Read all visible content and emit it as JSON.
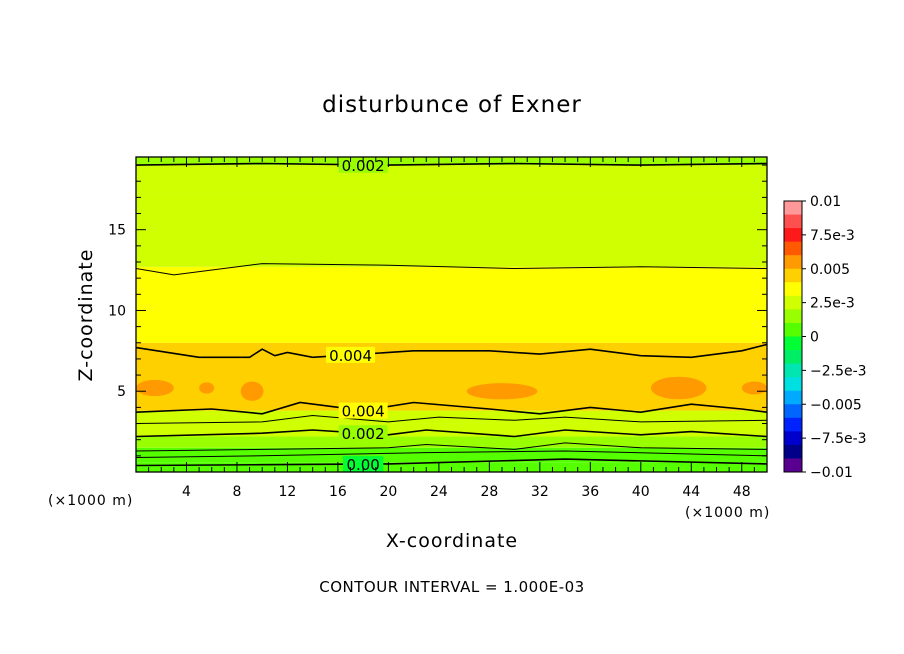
{
  "chart_data": {
    "type": "heatmap",
    "title": "disturbunce of Exner",
    "xlabel": "X-coordinate",
    "ylabel": "Z-coordinate",
    "x_unit_left": "(×1000 m)",
    "x_unit_right": "(×1000 m)",
    "xlim": [
      0,
      50
    ],
    "ylim": [
      0,
      19.5
    ],
    "x_ticks": [
      4,
      8,
      12,
      16,
      20,
      24,
      28,
      32,
      36,
      40,
      44,
      48
    ],
    "y_ticks": [
      5,
      10,
      15
    ],
    "footer": "CONTOUR INTERVAL = 1.000E-03",
    "colorbar": {
      "range": [
        -0.01,
        0.01
      ],
      "tick_values": [
        0.01,
        0.0075,
        0.005,
        0.0025,
        0,
        -0.0025,
        -0.005,
        -0.0075,
        -0.01
      ],
      "tick_labels": [
        "0.01",
        "7.5e-3",
        "0.005",
        "2.5e-3",
        "0",
        "−2.5e-3",
        "−0.005",
        "−7.5e-3",
        "−0.01"
      ],
      "colors": [
        "#ff9999",
        "#ff5050",
        "#ff1a1a",
        "#ff5a00",
        "#ff9a00",
        "#ffd000",
        "#ffff00",
        "#cfff00",
        "#99ff00",
        "#55ff00",
        "#00ff33",
        "#00ee66",
        "#00e6b0",
        "#00e0e0",
        "#00aaff",
        "#0066ff",
        "#0022ff",
        "#0000cc",
        "#000088",
        "#5a0090"
      ]
    },
    "bands": [
      {
        "z0": 0.0,
        "z1": 0.6,
        "value": 0.0003
      },
      {
        "z0": 0.6,
        "z1": 1.5,
        "value": 0.0008
      },
      {
        "z0": 1.5,
        "z1": 2.2,
        "value": 0.0013
      },
      {
        "z0": 2.2,
        "z1": 3.0,
        "value": 0.0021
      },
      {
        "z0": 3.0,
        "z1": 3.8,
        "value": 0.0026
      },
      {
        "z0": 3.8,
        "z1": 8.0,
        "value": 0.0046
      },
      {
        "z0": 8.0,
        "z1": 12.7,
        "value": 0.0036
      },
      {
        "z0": 12.7,
        "z1": 17.3,
        "value": 0.0029
      },
      {
        "z0": 17.3,
        "z1": 19.0,
        "value": 0.0024
      },
      {
        "z0": 19.0,
        "z1": 19.5,
        "value": 0.0019
      }
    ],
    "contours": [
      {
        "value": 0.002,
        "label": "0.002",
        "label_x": 18,
        "points": [
          [
            0,
            19.0
          ],
          [
            10,
            19.1
          ],
          [
            20,
            19.0
          ],
          [
            30,
            19.1
          ],
          [
            40,
            19.0
          ],
          [
            50,
            19.1
          ]
        ]
      },
      {
        "value": 0.003,
        "label": "",
        "points": [
          [
            0,
            12.6
          ],
          [
            3,
            12.2
          ],
          [
            10,
            12.9
          ],
          [
            20,
            12.8
          ],
          [
            30,
            12.6
          ],
          [
            40,
            12.7
          ],
          [
            50,
            12.6
          ]
        ]
      },
      {
        "value": 0.004,
        "label": "0.004",
        "label_x": 17,
        "points": [
          [
            0,
            7.7
          ],
          [
            5,
            7.1
          ],
          [
            9,
            7.1
          ],
          [
            10,
            7.6
          ],
          [
            11,
            7.2
          ],
          [
            12,
            7.4
          ],
          [
            14,
            7.1
          ],
          [
            18,
            7.3
          ],
          [
            22,
            7.5
          ],
          [
            28,
            7.5
          ],
          [
            32,
            7.3
          ],
          [
            36,
            7.6
          ],
          [
            40,
            7.2
          ],
          [
            44,
            7.1
          ],
          [
            48,
            7.5
          ],
          [
            50,
            7.9
          ]
        ]
      },
      {
        "value": 0.004,
        "label": "0.004",
        "label_x": 18,
        "points": [
          [
            0,
            3.7
          ],
          [
            6,
            3.9
          ],
          [
            10,
            3.6
          ],
          [
            13,
            4.3
          ],
          [
            18,
            3.8
          ],
          [
            22,
            4.3
          ],
          [
            28,
            3.9
          ],
          [
            32,
            3.6
          ],
          [
            36,
            4.0
          ],
          [
            40,
            3.7
          ],
          [
            44,
            4.2
          ],
          [
            48,
            3.9
          ],
          [
            50,
            3.7
          ]
        ]
      },
      {
        "value": 0.003,
        "label": "",
        "points": [
          [
            0,
            3.0
          ],
          [
            10,
            3.1
          ],
          [
            14,
            3.5
          ],
          [
            20,
            3.1
          ],
          [
            24,
            3.4
          ],
          [
            30,
            3.2
          ],
          [
            34,
            3.4
          ],
          [
            40,
            3.1
          ],
          [
            50,
            3.2
          ]
        ]
      },
      {
        "value": 0.002,
        "label": "0.002",
        "label_x": 18,
        "points": [
          [
            0,
            2.2
          ],
          [
            10,
            2.4
          ],
          [
            14,
            2.6
          ],
          [
            20,
            2.3
          ],
          [
            23,
            2.6
          ],
          [
            30,
            2.2
          ],
          [
            34,
            2.6
          ],
          [
            40,
            2.3
          ],
          [
            44,
            2.5
          ],
          [
            50,
            2.2
          ]
        ]
      },
      {
        "value": 0.001,
        "label": "",
        "points": [
          [
            0,
            1.3
          ],
          [
            10,
            1.4
          ],
          [
            20,
            1.5
          ],
          [
            23,
            1.7
          ],
          [
            30,
            1.4
          ],
          [
            34,
            1.8
          ],
          [
            40,
            1.5
          ],
          [
            50,
            1.4
          ]
        ]
      },
      {
        "value": 0.0005,
        "label": "",
        "points": [
          [
            0,
            0.9
          ],
          [
            10,
            1.0
          ],
          [
            23,
            1.2
          ],
          [
            34,
            1.3
          ],
          [
            50,
            1.0
          ]
        ]
      },
      {
        "value": 0.0,
        "label": "0.00",
        "label_x": 18,
        "points": [
          [
            0,
            0.4
          ],
          [
            10,
            0.45
          ],
          [
            20,
            0.5
          ],
          [
            34,
            0.8
          ],
          [
            50,
            0.5
          ]
        ]
      }
    ],
    "blobs": [
      {
        "x": 1.5,
        "z": 5.2,
        "rx": 1.5,
        "rz": 0.5,
        "value": 0.0052
      },
      {
        "x": 9.2,
        "z": 5.0,
        "rx": 0.9,
        "rz": 0.6,
        "value": 0.0052
      },
      {
        "x": 5.6,
        "z": 5.2,
        "rx": 0.6,
        "rz": 0.35,
        "value": 0.0052
      },
      {
        "x": 29.0,
        "z": 5.0,
        "rx": 2.8,
        "rz": 0.5,
        "value": 0.0052
      },
      {
        "x": 43.0,
        "z": 5.2,
        "rx": 2.2,
        "rz": 0.7,
        "value": 0.0052
      },
      {
        "x": 49.0,
        "z": 5.2,
        "rx": 1.0,
        "rz": 0.4,
        "value": 0.0052
      }
    ]
  }
}
